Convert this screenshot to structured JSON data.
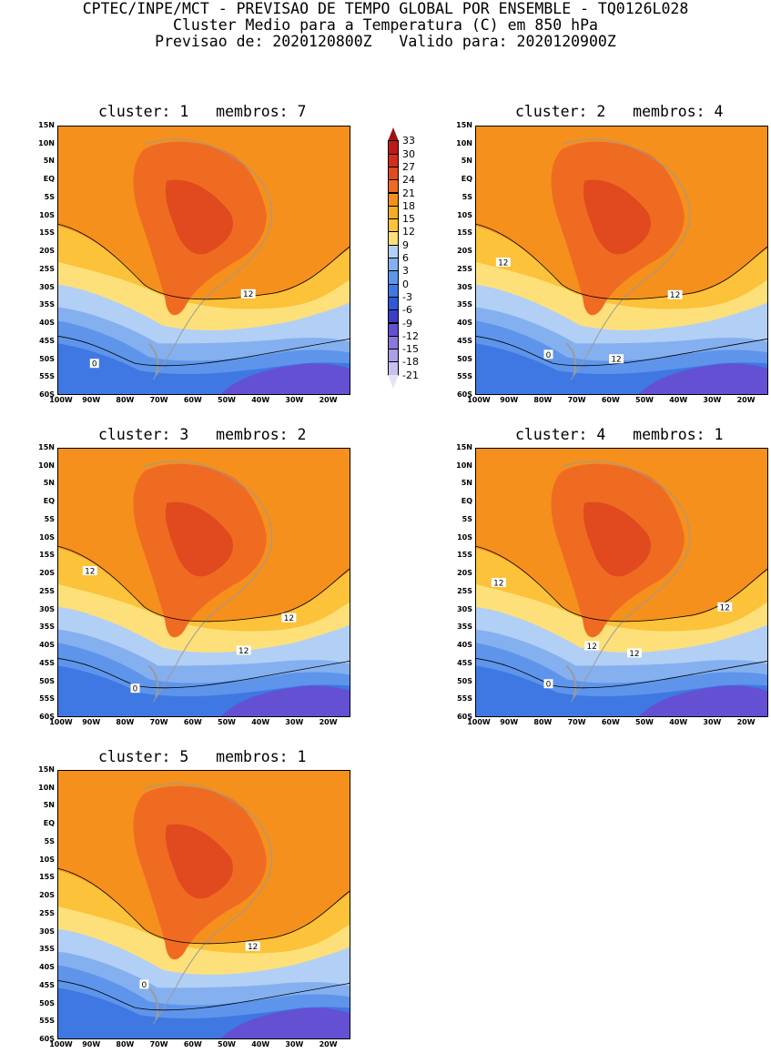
{
  "header": {
    "line1": "CPTEC/INPE/MCT - PREVISAO DE TEMPO GLOBAL POR ENSEMBLE - TQ0126L028",
    "line2": "Cluster Medio para a Temperatura (C) em 850 hPa",
    "line3": "Previsao de: 2020120800Z   Valido para: 2020120900Z"
  },
  "axes": {
    "lat_labels": [
      "15N",
      "10N",
      "5N",
      "EQ",
      "5S",
      "10S",
      "15S",
      "20S",
      "25S",
      "30S",
      "35S",
      "40S",
      "45S",
      "50S",
      "55S",
      "60S"
    ],
    "lon_labels": [
      "100W",
      "90W",
      "80W",
      "70W",
      "60W",
      "50W",
      "40W",
      "30W",
      "20W"
    ]
  },
  "colorbar": {
    "levels": [
      "33",
      "30",
      "27",
      "24",
      "21",
      "18",
      "15",
      "12",
      "9",
      "6",
      "3",
      "0",
      "-3",
      "-6",
      "-9",
      "-12",
      "-15",
      "-18",
      "-21"
    ],
    "colors": [
      "#a01010",
      "#c01818",
      "#d42d1f",
      "#e04a1e",
      "#f06b22",
      "#f5901c",
      "#f7aa26",
      "#fbc23a",
      "#fde07a",
      "#b2cff5",
      "#84b0ef",
      "#5e95eb",
      "#3f78e2",
      "#2e5ad8",
      "#3c3cc8",
      "#6450d2",
      "#8c78dc",
      "#ac9ee6",
      "#c8c0ee",
      "#e6e2f8"
    ]
  },
  "panels": [
    {
      "title": "cluster: 1   membros: 7",
      "contour_labels": [
        "12",
        "0"
      ]
    },
    {
      "title": "cluster: 2   membros: 4",
      "contour_labels": [
        "12",
        "12",
        "12",
        "0"
      ]
    },
    {
      "title": "cluster: 3   membros: 2",
      "contour_labels": [
        "12",
        "12",
        "12",
        "0"
      ]
    },
    {
      "title": "cluster: 4   membros: 1",
      "contour_labels": [
        "12",
        "12",
        "12",
        "12",
        "0"
      ]
    },
    {
      "title": "cluster: 5   membros: 1",
      "contour_labels": [
        "12",
        "0"
      ]
    }
  ]
}
